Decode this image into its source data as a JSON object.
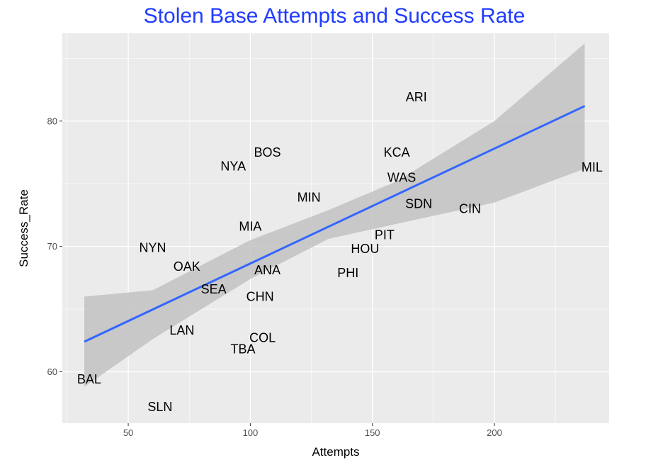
{
  "chart_data": {
    "type": "scatter",
    "title": "Stolen Base Attempts and Success Rate",
    "xlabel": "Attempts",
    "ylabel": "Success_Rate",
    "xlim": [
      23,
      247
    ],
    "ylim": [
      55.9,
      87.0
    ],
    "xticks": [
      50,
      100,
      150,
      200
    ],
    "yticks": [
      60,
      70,
      80
    ],
    "grid": true,
    "point_style": "text labels",
    "points": [
      {
        "label": "ARI",
        "x": 168,
        "y": 81.9
      },
      {
        "label": "BOS",
        "x": 107,
        "y": 77.5
      },
      {
        "label": "NYA",
        "x": 93,
        "y": 76.4
      },
      {
        "label": "KCA",
        "x": 160,
        "y": 77.5
      },
      {
        "label": "WAS",
        "x": 162,
        "y": 75.5
      },
      {
        "label": "MIL",
        "x": 240,
        "y": 76.3
      },
      {
        "label": "MIN",
        "x": 124,
        "y": 73.9
      },
      {
        "label": "SDN",
        "x": 169,
        "y": 73.4
      },
      {
        "label": "CIN",
        "x": 190,
        "y": 73.0
      },
      {
        "label": "MIA",
        "x": 100,
        "y": 71.6
      },
      {
        "label": "PIT",
        "x": 155,
        "y": 70.9
      },
      {
        "label": "HOU",
        "x": 147,
        "y": 69.8
      },
      {
        "label": "NYN",
        "x": 60,
        "y": 69.9
      },
      {
        "label": "OAK",
        "x": 74,
        "y": 68.4
      },
      {
        "label": "ANA",
        "x": 107,
        "y": 68.1
      },
      {
        "label": "PHI",
        "x": 140,
        "y": 67.9
      },
      {
        "label": "SEA",
        "x": 85,
        "y": 66.6
      },
      {
        "label": "CHN",
        "x": 104,
        "y": 66.0
      },
      {
        "label": "LAN",
        "x": 72,
        "y": 63.3
      },
      {
        "label": "COL",
        "x": 105,
        "y": 62.7
      },
      {
        "label": "TBA",
        "x": 97,
        "y": 61.8
      },
      {
        "label": "BAL",
        "x": 34,
        "y": 59.4
      },
      {
        "label": "SLN",
        "x": 63,
        "y": 57.2
      }
    ],
    "fit": {
      "method": "linear regression",
      "color": "#3366ff",
      "points": [
        [
          32,
          62.4
        ],
        [
          237,
          81.2
        ]
      ],
      "ci_band": {
        "x": [
          32,
          60,
          100,
          132,
          160,
          200,
          237
        ],
        "lower": [
          58.8,
          62.6,
          67.4,
          70.6,
          71.8,
          73.5,
          76.2
        ],
        "upper": [
          66.0,
          66.5,
          70.5,
          72.9,
          75.2,
          80.0,
          86.2
        ]
      },
      "band_color": "#c2c2c2"
    },
    "colors": {
      "panel": "#ebebeb",
      "grid": "#ffffff",
      "title": "#1f3cff"
    }
  }
}
